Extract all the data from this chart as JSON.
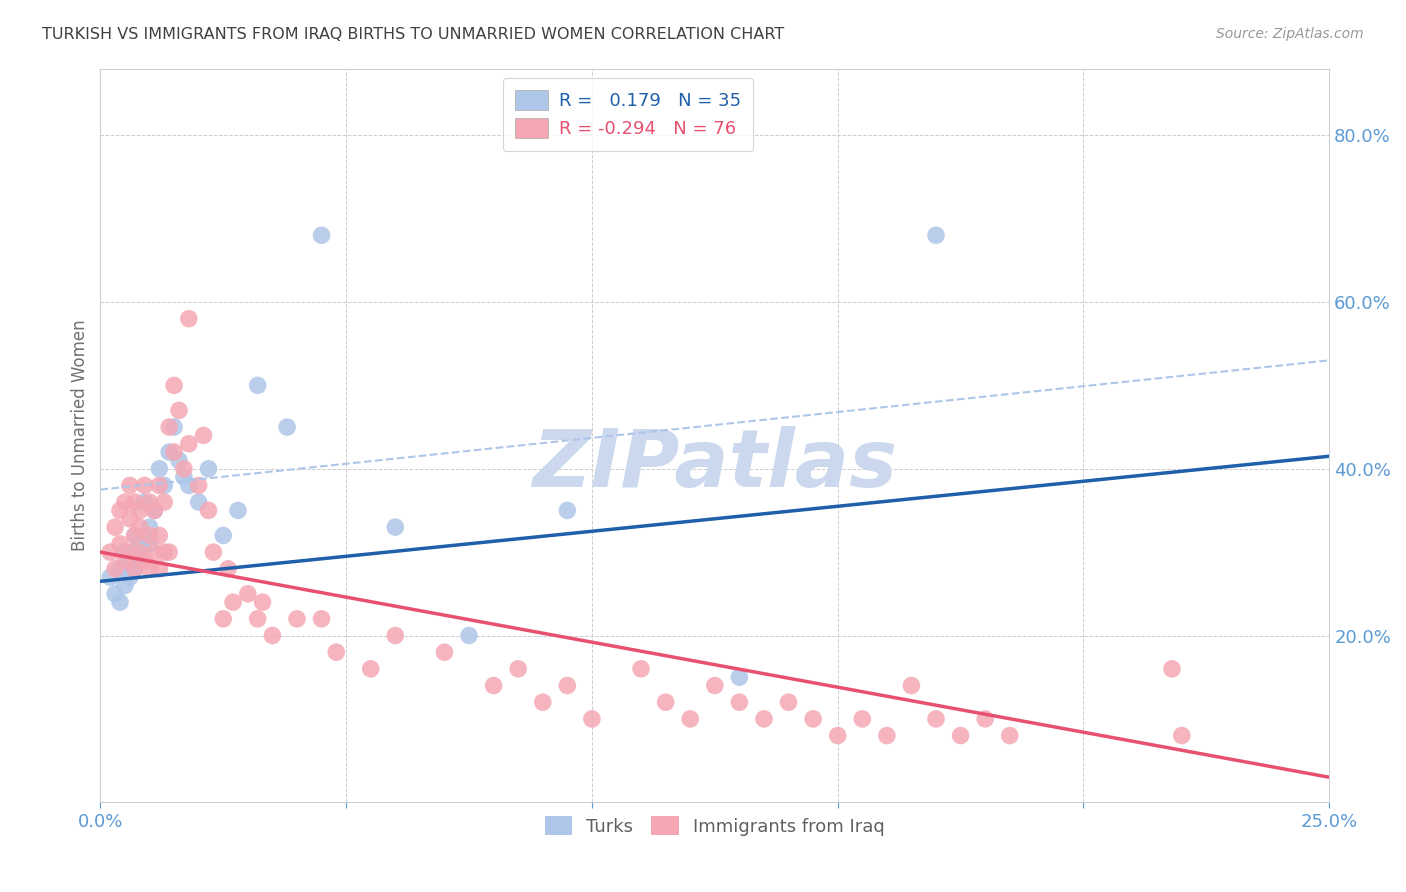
{
  "title": "TURKISH VS IMMIGRANTS FROM IRAQ BIRTHS TO UNMARRIED WOMEN CORRELATION CHART",
  "source": "Source: ZipAtlas.com",
  "ylabel": "Births to Unmarried Women",
  "xlim": [
    0.0,
    0.25
  ],
  "ylim": [
    0.0,
    0.88
  ],
  "R_blue": 0.179,
  "N_blue": 35,
  "R_pink": -0.294,
  "N_pink": 76,
  "blue_color": "#aec6e8",
  "pink_color": "#f4a7b3",
  "blue_line_color": "#2060aa",
  "pink_line_color": "#e85070",
  "dashed_line_color": "#aec6e8",
  "grid_color": "#c8c8c8",
  "axis_label_color": "#5b9bd5",
  "title_color": "#404040",
  "watermark_color": "#ccd8ee",
  "background_color": "#ffffff",
  "blue_trendline": [
    0.0,
    0.25,
    0.265,
    0.415
  ],
  "pink_trendline": [
    0.0,
    0.25,
    0.3,
    0.03
  ],
  "blue_dashed": [
    0.0,
    0.25,
    0.375,
    0.53
  ],
  "turks_x": [
    0.002,
    0.003,
    0.004,
    0.004,
    0.005,
    0.005,
    0.006,
    0.006,
    0.007,
    0.007,
    0.008,
    0.008,
    0.009,
    0.01,
    0.01,
    0.011,
    0.012,
    0.013,
    0.014,
    0.015,
    0.016,
    0.017,
    0.018,
    0.02,
    0.022,
    0.025,
    0.028,
    0.032,
    0.038,
    0.045,
    0.06,
    0.075,
    0.095,
    0.13,
    0.17
  ],
  "turks_y": [
    0.27,
    0.25,
    0.28,
    0.24,
    0.3,
    0.26,
    0.29,
    0.27,
    0.32,
    0.28,
    0.31,
    0.29,
    0.36,
    0.33,
    0.31,
    0.35,
    0.4,
    0.38,
    0.42,
    0.45,
    0.41,
    0.39,
    0.38,
    0.36,
    0.4,
    0.32,
    0.35,
    0.5,
    0.45,
    0.68,
    0.33,
    0.2,
    0.35,
    0.15,
    0.68
  ],
  "iraq_x": [
    0.002,
    0.003,
    0.003,
    0.004,
    0.004,
    0.005,
    0.005,
    0.006,
    0.006,
    0.006,
    0.007,
    0.007,
    0.007,
    0.008,
    0.008,
    0.008,
    0.009,
    0.009,
    0.01,
    0.01,
    0.01,
    0.011,
    0.011,
    0.012,
    0.012,
    0.012,
    0.013,
    0.013,
    0.014,
    0.014,
    0.015,
    0.015,
    0.016,
    0.017,
    0.018,
    0.018,
    0.02,
    0.021,
    0.022,
    0.023,
    0.025,
    0.026,
    0.027,
    0.03,
    0.032,
    0.033,
    0.035,
    0.04,
    0.045,
    0.048,
    0.055,
    0.06,
    0.07,
    0.08,
    0.085,
    0.09,
    0.095,
    0.1,
    0.11,
    0.115,
    0.12,
    0.125,
    0.13,
    0.135,
    0.14,
    0.145,
    0.15,
    0.155,
    0.16,
    0.165,
    0.17,
    0.175,
    0.18,
    0.185,
    0.218,
    0.22
  ],
  "iraq_y": [
    0.3,
    0.33,
    0.28,
    0.35,
    0.31,
    0.36,
    0.29,
    0.34,
    0.38,
    0.3,
    0.32,
    0.36,
    0.28,
    0.33,
    0.3,
    0.35,
    0.29,
    0.38,
    0.32,
    0.28,
    0.36,
    0.35,
    0.3,
    0.38,
    0.32,
    0.28,
    0.3,
    0.36,
    0.45,
    0.3,
    0.5,
    0.42,
    0.47,
    0.4,
    0.58,
    0.43,
    0.38,
    0.44,
    0.35,
    0.3,
    0.22,
    0.28,
    0.24,
    0.25,
    0.22,
    0.24,
    0.2,
    0.22,
    0.22,
    0.18,
    0.16,
    0.2,
    0.18,
    0.14,
    0.16,
    0.12,
    0.14,
    0.1,
    0.16,
    0.12,
    0.1,
    0.14,
    0.12,
    0.1,
    0.12,
    0.1,
    0.08,
    0.1,
    0.08,
    0.14,
    0.1,
    0.08,
    0.1,
    0.08,
    0.16,
    0.08
  ]
}
